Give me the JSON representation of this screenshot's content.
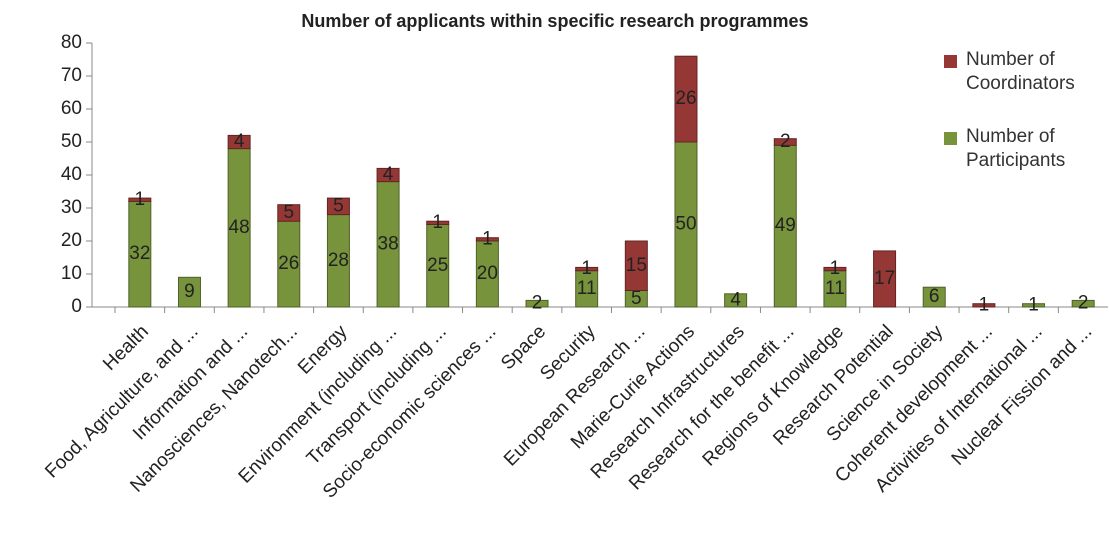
{
  "chart_data": {
    "type": "stacked_bar",
    "title": "Number of applicants within specific research programmes",
    "categories": [
      "Health",
      "Food, Agriculture, and ...",
      "Information and ...",
      "Nanosciences, Nanotech...",
      "Energy",
      "Environment (including ...",
      "Transport (including ...",
      "Socio-economic sciences ...",
      "Space",
      "Security",
      "European Research ...",
      "Marie-Curie Actions",
      "Research Infrastructures",
      "Research for the benefit ...",
      "Regions of Knowledge",
      "Research Potential",
      "Science in Society",
      "Coherent development ...",
      "Activities of International ...",
      "Nuclear Fission and ..."
    ],
    "series": [
      {
        "name": "Number of Participants",
        "color": "#77933c",
        "values": [
          32,
          9,
          48,
          26,
          28,
          38,
          25,
          20,
          2,
          11,
          5,
          50,
          4,
          49,
          11,
          null,
          6,
          null,
          1,
          2
        ]
      },
      {
        "name": "Number of Coordinators",
        "color": "#953735",
        "values": [
          1,
          null,
          4,
          5,
          5,
          4,
          1,
          1,
          null,
          1,
          15,
          26,
          null,
          2,
          1,
          17,
          null,
          1,
          null,
          null
        ]
      }
    ],
    "ylim": [
      0,
      80
    ],
    "yticks": [
      0,
      10,
      20,
      30,
      40,
      50,
      60,
      70,
      80
    ]
  }
}
